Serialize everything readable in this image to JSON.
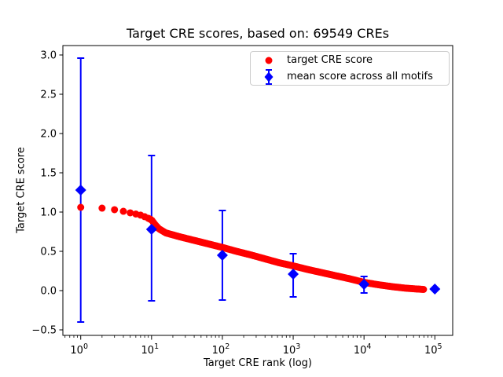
{
  "chart_data": {
    "type": "scatter",
    "title": "Target CRE scores, based on: 69549 CREs",
    "xlabel": "Target CRE rank (log)",
    "ylabel": "Target CRE score",
    "x_scale": "log",
    "grid": false,
    "xlim_log10": [
      -0.252,
      5.252
    ],
    "ylim": [
      -0.57,
      3.12
    ],
    "x_major_ticks": [
      {
        "log10": 0,
        "base": "10",
        "exp": "0"
      },
      {
        "log10": 1,
        "base": "10",
        "exp": "1"
      },
      {
        "log10": 2,
        "base": "10",
        "exp": "2"
      },
      {
        "log10": 3,
        "base": "10",
        "exp": "3"
      },
      {
        "log10": 4,
        "base": "10",
        "exp": "4"
      },
      {
        "log10": 5,
        "base": "10",
        "exp": "5"
      }
    ],
    "y_ticks": [
      {
        "value": -0.5,
        "label": "−0.5"
      },
      {
        "value": 0.0,
        "label": "0.0"
      },
      {
        "value": 0.5,
        "label": "0.5"
      },
      {
        "value": 1.0,
        "label": "1.0"
      },
      {
        "value": 1.5,
        "label": "1.5"
      },
      {
        "value": 2.0,
        "label": "2.0"
      },
      {
        "value": 2.5,
        "label": "2.5"
      },
      {
        "value": 3.0,
        "label": "3.0"
      }
    ],
    "legend": {
      "position": "upper right"
    },
    "n_cres": "69549",
    "series": [
      {
        "name": "target CRE score",
        "color": "#ff0000",
        "marker": "circle",
        "marker_radius_px": 4.5,
        "curve_log10_points": [
          [
            0.0,
            1.06
          ],
          [
            0.3,
            1.05
          ],
          [
            0.48,
            1.03
          ],
          [
            0.6,
            1.01
          ],
          [
            0.7,
            0.99
          ],
          [
            0.78,
            0.975
          ],
          [
            0.85,
            0.96
          ],
          [
            0.92,
            0.935
          ],
          [
            0.98,
            0.91
          ],
          [
            1.0,
            0.9
          ],
          [
            1.05,
            0.84
          ],
          [
            1.1,
            0.79
          ],
          [
            1.2,
            0.735
          ],
          [
            1.4,
            0.685
          ],
          [
            1.6,
            0.64
          ],
          [
            1.8,
            0.595
          ],
          [
            2.0,
            0.55
          ],
          [
            2.2,
            0.5
          ],
          [
            2.4,
            0.455
          ],
          [
            2.6,
            0.405
          ],
          [
            2.8,
            0.355
          ],
          [
            3.0,
            0.315
          ],
          [
            3.2,
            0.27
          ],
          [
            3.4,
            0.23
          ],
          [
            3.6,
            0.19
          ],
          [
            3.8,
            0.15
          ],
          [
            4.0,
            0.105
          ],
          [
            4.2,
            0.075
          ],
          [
            4.4,
            0.05
          ],
          [
            4.6,
            0.03
          ],
          [
            4.84,
            0.015
          ]
        ]
      },
      {
        "name": "mean score across all motifs",
        "color": "#0000ff",
        "marker": "diamond",
        "points": [
          {
            "rank": 1,
            "mean": 1.28,
            "lo": -0.4,
            "hi": 2.96
          },
          {
            "rank": 10,
            "mean": 0.78,
            "lo": -0.13,
            "hi": 1.72
          },
          {
            "rank": 100,
            "mean": 0.45,
            "lo": -0.12,
            "hi": 1.02
          },
          {
            "rank": 1000,
            "mean": 0.21,
            "lo": -0.08,
            "hi": 0.47
          },
          {
            "rank": 10000,
            "mean": 0.08,
            "lo": -0.03,
            "hi": 0.18
          },
          {
            "rank": 100000,
            "mean": 0.02,
            "lo": 0.02,
            "hi": 0.02
          }
        ]
      }
    ]
  }
}
